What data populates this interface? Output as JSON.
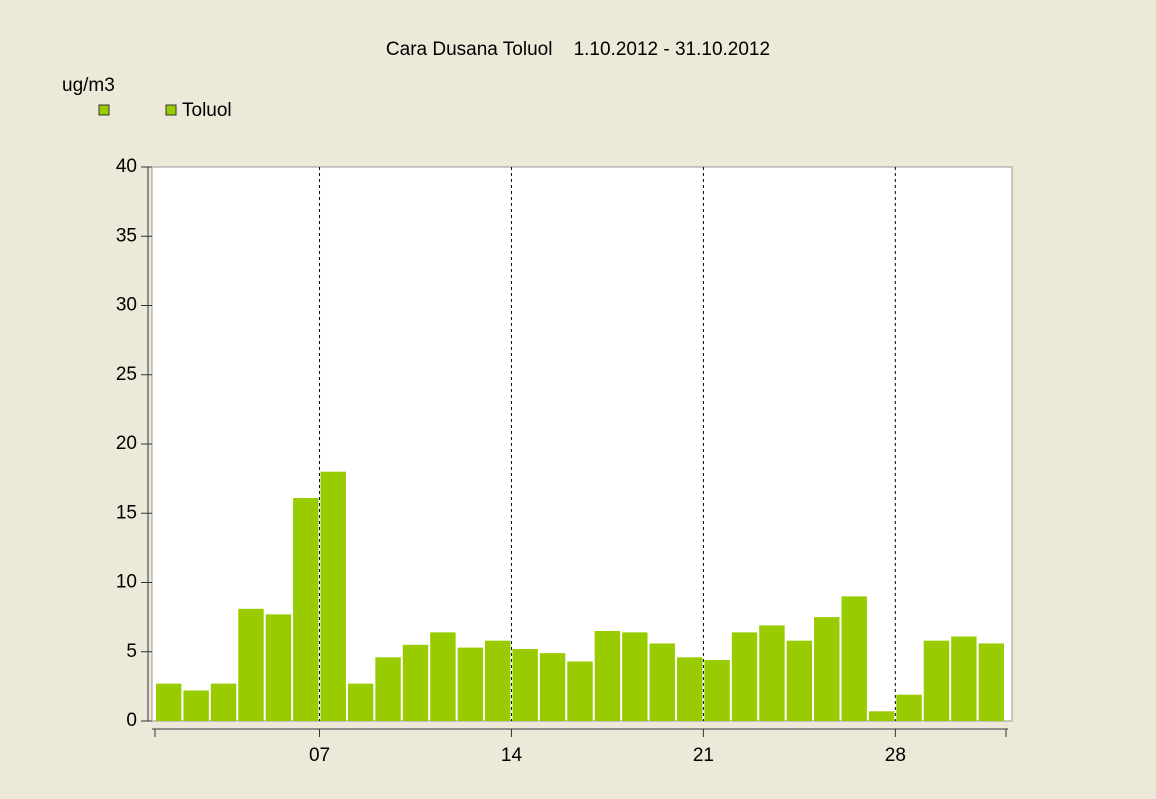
{
  "chart_data": {
    "type": "bar",
    "title": "Cara Dusana Toluol    1.10.2012 - 31.10.2012",
    "y_label": "ug/m3",
    "x": [
      1,
      2,
      3,
      4,
      5,
      6,
      7,
      8,
      9,
      10,
      11,
      12,
      13,
      14,
      15,
      16,
      17,
      18,
      19,
      20,
      21,
      22,
      23,
      24,
      25,
      26,
      27,
      28,
      29,
      30,
      31
    ],
    "series": [
      {
        "name": "Toluol",
        "color": "#99cc00",
        "values": [
          2.7,
          2.2,
          2.7,
          8.1,
          7.7,
          16.1,
          18.0,
          2.7,
          4.6,
          5.5,
          6.4,
          5.3,
          5.8,
          5.2,
          4.9,
          4.3,
          6.5,
          6.4,
          5.6,
          4.6,
          4.4,
          6.4,
          6.9,
          5.8,
          7.5,
          9.0,
          0.7,
          1.9,
          5.8,
          6.1,
          5.6
        ]
      }
    ],
    "xlim": [
      1,
      32
    ],
    "xticks": [
      {
        "value": 7,
        "label": "07"
      },
      14,
      21,
      28
    ],
    "ylim": [
      0,
      40
    ],
    "yticks": [
      0,
      5,
      10,
      15,
      20,
      25,
      30,
      35,
      40
    ],
    "grid": "x"
  }
}
